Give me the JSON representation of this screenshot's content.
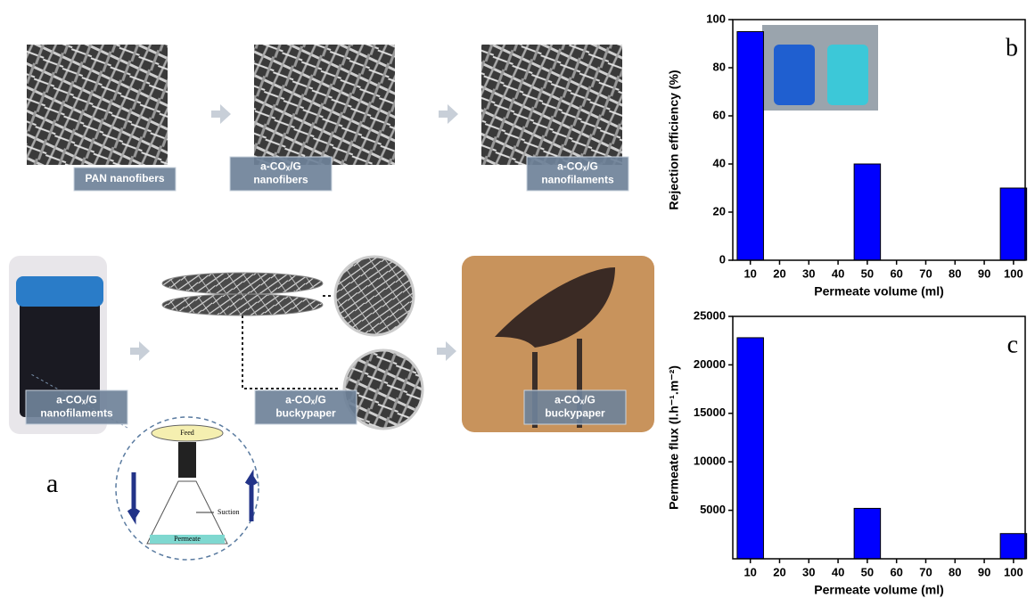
{
  "chart_data": [
    {
      "type": "bar",
      "annotation": "b",
      "x": [
        10,
        50,
        100
      ],
      "values": [
        95,
        40,
        30
      ],
      "color": "#0000ff",
      "xlim": [
        4,
        104
      ],
      "xticks": [
        10,
        20,
        30,
        40,
        50,
        60,
        70,
        80,
        90,
        100
      ],
      "ylim": [
        0,
        100
      ],
      "yticks": [
        0,
        20,
        40,
        60,
        80,
        100
      ],
      "xlabel": "Permeate volume (ml)",
      "ylabel": "Rejection efficiency (%)"
    },
    {
      "type": "bar",
      "annotation": "c",
      "x": [
        10,
        50,
        100
      ],
      "values": [
        22800,
        5200,
        2600
      ],
      "color": "#0000ff",
      "xlim": [
        4,
        104
      ],
      "xticks": [
        10,
        20,
        30,
        40,
        50,
        60,
        70,
        80,
        90,
        100
      ],
      "ylim": [
        0,
        25000
      ],
      "yticks": [
        5000,
        10000,
        15000,
        20000,
        25000
      ],
      "xlabel": "Permeate volume (ml)",
      "ylabel": "Permeate flux (l.h⁻¹.m⁻²)"
    }
  ],
  "figure_a": {
    "label": "a",
    "captions": [
      [
        "PAN nanofibers"
      ],
      [
        "a-COₓ/G",
        "nanofibers"
      ],
      [
        "a-COₓ/G",
        "nanofilaments"
      ],
      [
        "a-COₓ/G",
        "nanofilaments"
      ],
      [
        "a-COₓ/G",
        "buckypaper"
      ],
      [
        "a-COₓ/G",
        "buckypaper"
      ]
    ],
    "setup_labels": [
      "Feed",
      "Suction",
      "Permeate"
    ]
  }
}
